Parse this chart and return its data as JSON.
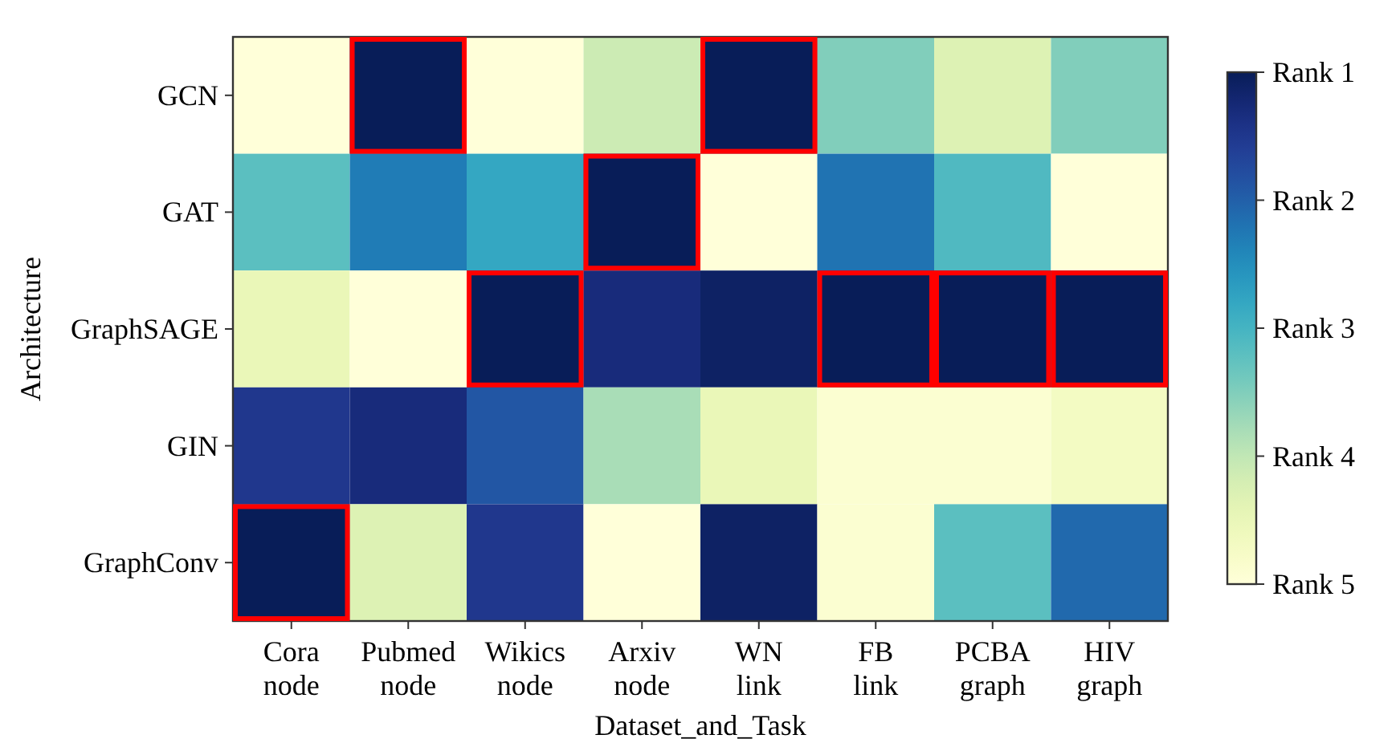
{
  "chart_data": {
    "type": "heatmap",
    "xlabel": "Dataset_and_Task",
    "ylabel": "Architecture",
    "categories": [
      "Cora\nnode",
      "Pubmed\nnode",
      "Wikics\nnode",
      "Arxiv\nnode",
      "WN\nlink",
      "FB\nlink",
      "PCBA\ngraph",
      "HIV\ngraph"
    ],
    "y_categories": [
      "GCN",
      "GAT",
      "GraphSAGE",
      "GIN",
      "GraphConv"
    ],
    "cells": [
      [
        5,
        1,
        5,
        4.1,
        1,
        3.5,
        4.3,
        3.5
      ],
      [
        3.2,
        2.3,
        2.8,
        1,
        5,
        2.2,
        3.1,
        5
      ],
      [
        4.5,
        5,
        1,
        1.3,
        1.1,
        1,
        1,
        1
      ],
      [
        1.5,
        1.3,
        1.9,
        3.8,
        4.5,
        4.9,
        4.9,
        4.7
      ],
      [
        1,
        4.3,
        1.5,
        5,
        1.1,
        4.9,
        3.2,
        2.1
      ]
    ],
    "clim": [
      5,
      1
    ],
    "cticks": [
      {
        "value": 1,
        "label": "Rank 1"
      },
      {
        "value": 2,
        "label": "Rank 2"
      },
      {
        "value": 3,
        "label": "Rank 3"
      },
      {
        "value": 4,
        "label": "Rank 4"
      },
      {
        "value": 5,
        "label": "Rank 5"
      }
    ]
  }
}
